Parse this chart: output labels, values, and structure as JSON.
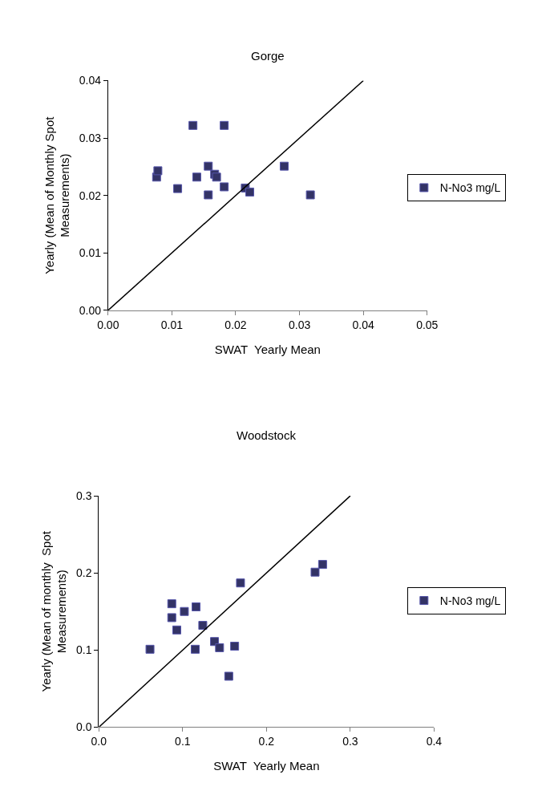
{
  "chart_data": [
    {
      "type": "scatter",
      "title": "Gorge",
      "xlabel": "SWAT  Yearly Mean",
      "ylabel": "Yearly (Mean of Monthly Spot Measurements)",
      "legend": "right",
      "xlim": [
        0,
        0.05
      ],
      "xticks": [
        {
          "value": 0,
          "label": "0.00"
        },
        {
          "value": 0.01,
          "label": "0.01"
        },
        {
          "value": 0.02,
          "label": "0.02"
        },
        {
          "value": 0.03,
          "label": "0.03"
        },
        {
          "value": 0.04,
          "label": "0.04"
        },
        {
          "value": 0.05,
          "label": "0.05"
        }
      ],
      "ylim": [
        0,
        0.04
      ],
      "yticks": [
        {
          "value": 0,
          "label": "0.00"
        },
        {
          "value": 0.01,
          "label": "0.01"
        },
        {
          "value": 0.02,
          "label": "0.02"
        },
        {
          "value": 0.03,
          "label": "0.03"
        },
        {
          "value": 0.04,
          "label": "0.04"
        }
      ],
      "series": [
        {
          "name": "N-No3 mg/L",
          "color": "#333366",
          "marker": "square",
          "x": [
            0.0076,
            0.0078,
            0.0109,
            0.0133,
            0.0139,
            0.0157,
            0.0157,
            0.0167,
            0.017,
            0.0182,
            0.0182,
            0.0215,
            0.0222,
            0.0276,
            0.0317
          ],
          "values": [
            0.0232,
            0.0243,
            0.0212,
            0.0322,
            0.0232,
            0.0251,
            0.0201,
            0.0237,
            0.0232,
            0.0322,
            0.0215,
            0.0213,
            0.0206,
            0.0251,
            0.0201
          ]
        },
        {
          "type": "line",
          "color": "#000000",
          "marker": "none",
          "x": [
            0,
            0.04
          ],
          "values": [
            0,
            0.04
          ]
        }
      ]
    },
    {
      "type": "scatter",
      "title": "Woodstock",
      "xlabel": "SWAT  Yearly Mean",
      "ylabel": "Yearly (Mean of monthly  Spot Measurements)",
      "legend": "right",
      "xlim": [
        0,
        0.4
      ],
      "xticks": [
        {
          "value": 0,
          "label": "0.0"
        },
        {
          "value": 0.1,
          "label": "0.1"
        },
        {
          "value": 0.2,
          "label": "0.2"
        },
        {
          "value": 0.3,
          "label": "0.3"
        },
        {
          "value": 0.4,
          "label": "0.4"
        }
      ],
      "ylim": [
        0,
        0.3
      ],
      "yticks": [
        {
          "value": 0,
          "label": "0.0"
        },
        {
          "value": 0.1,
          "label": "0.1"
        },
        {
          "value": 0.2,
          "label": "0.2"
        },
        {
          "value": 0.3,
          "label": "0.3"
        }
      ],
      "series": [
        {
          "name": "N-No3 mg/L",
          "color": "#333366",
          "marker": "square",
          "x": [
            0.061,
            0.087,
            0.087,
            0.093,
            0.102,
            0.116,
            0.115,
            0.124,
            0.138,
            0.144,
            0.162,
            0.155,
            0.169,
            0.258,
            0.267
          ],
          "values": [
            0.101,
            0.16,
            0.142,
            0.126,
            0.15,
            0.156,
            0.101,
            0.132,
            0.111,
            0.103,
            0.105,
            0.066,
            0.187,
            0.201,
            0.211
          ]
        },
        {
          "type": "line",
          "color": "#000000",
          "marker": "none",
          "x": [
            0,
            0.3
          ],
          "values": [
            0,
            0.3
          ]
        }
      ]
    }
  ]
}
